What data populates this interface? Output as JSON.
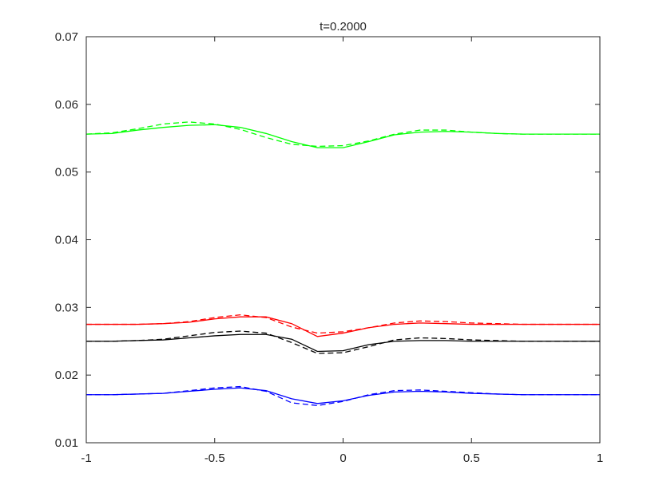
{
  "chart_data": {
    "type": "line",
    "title": "t=0.2000",
    "x": [
      -1,
      -0.9,
      -0.8,
      -0.7,
      -0.6,
      -0.5,
      -0.4,
      -0.3,
      -0.2,
      -0.1,
      0,
      0.1,
      0.2,
      0.3,
      0.4,
      0.5,
      0.6,
      0.7,
      0.8,
      0.9,
      1
    ],
    "xlim": [
      -1,
      1
    ],
    "xticks": [
      -1,
      -0.5,
      0,
      0.5,
      1
    ],
    "ylim": [
      0.01,
      0.07
    ],
    "yticks": [
      0.01,
      0.02,
      0.03,
      0.04,
      0.05,
      0.06,
      0.07
    ],
    "grid": false,
    "box": true,
    "series": [
      {
        "color": "#00ff00",
        "dashed": false,
        "values": [
          0.0556,
          0.0557,
          0.0562,
          0.0566,
          0.0569,
          0.057,
          0.0566,
          0.0557,
          0.0545,
          0.0536,
          0.0536,
          0.0545,
          0.0555,
          0.0559,
          0.056,
          0.0559,
          0.0557,
          0.0556,
          0.0556,
          0.0556,
          0.0556
        ]
      },
      {
        "color": "#00ff00",
        "dashed": true,
        "values": [
          0.0556,
          0.0558,
          0.0564,
          0.0571,
          0.0574,
          0.0571,
          0.0563,
          0.0551,
          0.0541,
          0.0538,
          0.0539,
          0.0546,
          0.0556,
          0.0562,
          0.0562,
          0.0559,
          0.0557,
          0.0556,
          0.0556,
          0.0556,
          0.0556
        ]
      },
      {
        "color": "#ff0000",
        "dashed": false,
        "values": [
          0.0275,
          0.0275,
          0.0275,
          0.0276,
          0.0278,
          0.0283,
          0.0286,
          0.0286,
          0.0276,
          0.0257,
          0.0262,
          0.027,
          0.0275,
          0.0277,
          0.0276,
          0.0275,
          0.0275,
          0.0275,
          0.0275,
          0.0275,
          0.0275
        ]
      },
      {
        "color": "#ff0000",
        "dashed": true,
        "values": [
          0.0275,
          0.0275,
          0.0275,
          0.0276,
          0.0279,
          0.0285,
          0.0289,
          0.0285,
          0.0271,
          0.0262,
          0.0264,
          0.027,
          0.0277,
          0.028,
          0.0279,
          0.0277,
          0.0276,
          0.0275,
          0.0275,
          0.0275,
          0.0275
        ]
      },
      {
        "color": "#000000",
        "dashed": false,
        "values": [
          0.025,
          0.025,
          0.0251,
          0.0252,
          0.0255,
          0.0258,
          0.026,
          0.026,
          0.0253,
          0.0235,
          0.0236,
          0.0245,
          0.025,
          0.0251,
          0.0251,
          0.025,
          0.025,
          0.025,
          0.025,
          0.025,
          0.025
        ]
      },
      {
        "color": "#000000",
        "dashed": true,
        "values": [
          0.025,
          0.025,
          0.0251,
          0.0253,
          0.0258,
          0.0263,
          0.0265,
          0.0262,
          0.0248,
          0.0232,
          0.0233,
          0.0242,
          0.0252,
          0.0255,
          0.0254,
          0.0252,
          0.0251,
          0.025,
          0.025,
          0.025,
          0.025
        ]
      },
      {
        "color": "#0000ff",
        "dashed": false,
        "values": [
          0.0171,
          0.0171,
          0.0172,
          0.0173,
          0.0176,
          0.0179,
          0.0181,
          0.0177,
          0.0165,
          0.0158,
          0.0162,
          0.017,
          0.0175,
          0.0176,
          0.0175,
          0.0173,
          0.0172,
          0.0171,
          0.0171,
          0.0171,
          0.0171
        ]
      },
      {
        "color": "#0000ff",
        "dashed": true,
        "values": [
          0.0171,
          0.0171,
          0.0172,
          0.0173,
          0.0177,
          0.0181,
          0.0183,
          0.0176,
          0.0159,
          0.0155,
          0.0161,
          0.0171,
          0.0177,
          0.0178,
          0.0176,
          0.0174,
          0.0172,
          0.0171,
          0.0171,
          0.0171,
          0.0171
        ]
      }
    ]
  }
}
